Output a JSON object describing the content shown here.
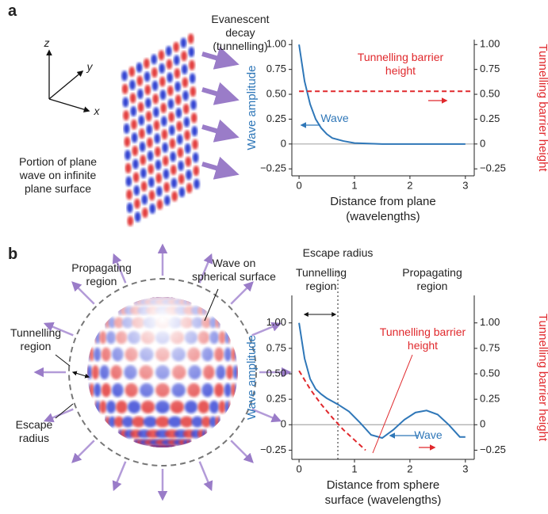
{
  "panels": [
    {
      "label": "a",
      "axes": [
        "z",
        "y",
        "x"
      ],
      "caption": "Portion of plane wave on infinite plane surface",
      "arrow_label": "Evanescent decay (tunnelling)"
    },
    {
      "label": "b",
      "propagating": "Propagating region",
      "wave": "Wave on spherical surface",
      "tunnelling": "Tunnelling region",
      "escape": "Escape radius"
    }
  ],
  "chart_data": [
    {
      "type": "line",
      "xlabel": [
        "Distance from plane",
        "(wavelengths)"
      ],
      "ylabel": "Wave amplitude",
      "y2label": "Tunnelling barrier height",
      "xlim": [
        -0.13,
        3.16
      ],
      "xticks": [
        0,
        1,
        2,
        3
      ],
      "ylim": [
        -0.32,
        1.05
      ],
      "yticks": [
        {
          "value": -0.25,
          "label": "−0.25"
        },
        0,
        {
          "value": 0.25,
          "label": "0.25"
        },
        {
          "value": 0.5,
          "label": "0.50"
        },
        {
          "value": 0.75,
          "label": "0.75"
        },
        {
          "value": 1,
          "label": "1.00"
        }
      ],
      "y2lim": [
        -0.32,
        1.05
      ],
      "y2ticks": [
        {
          "value": -0.25,
          "label": "−0.25"
        },
        0,
        {
          "value": 0.25,
          "label": "0.25"
        },
        {
          "value": 0.5,
          "label": "0.50"
        },
        {
          "value": 0.75,
          "label": "0.75"
        },
        {
          "value": 1,
          "label": "1.00"
        }
      ],
      "series": [
        {
          "name": "Wave",
          "color": "#2f77b8",
          "x": [
            0,
            0.1,
            0.2,
            0.3,
            0.4,
            0.5,
            0.6,
            0.8,
            1.0,
            1.5,
            2,
            2.5,
            3
          ],
          "values": [
            1.0,
            0.63,
            0.4,
            0.25,
            0.16,
            0.1,
            0.06,
            0.03,
            0.01,
            0,
            0,
            0,
            0
          ]
        },
        {
          "name": "Tunnelling barrier height",
          "color": "#e0282c",
          "axis": "y2",
          "dash": true,
          "x": [
            0,
            3.1
          ],
          "values": [
            0.53,
            0.53
          ]
        }
      ]
    },
    {
      "type": "line",
      "xlabel": [
        "Distance from sphere",
        "surface (wavelengths)"
      ],
      "ylabel": "Wave amplitude",
      "y2label": "Tunnelling barrier height",
      "xlim": [
        -0.13,
        3.16
      ],
      "xticks": [
        0,
        1,
        2,
        3
      ],
      "ylim": [
        -0.34,
        1.27
      ],
      "yticks": [
        {
          "value": -0.25,
          "label": "−0.25"
        },
        0,
        {
          "value": 0.25,
          "label": "0.25"
        },
        {
          "value": 0.5,
          "label": "0.50"
        },
        {
          "value": 0.75,
          "label": "0.75"
        },
        {
          "value": 1,
          "label": "1.00"
        }
      ],
      "y2lim": [
        -0.34,
        1.27
      ],
      "y2ticks": [
        {
          "value": -0.25,
          "label": "−0.25"
        },
        0,
        {
          "value": 0.25,
          "label": "0.25"
        },
        {
          "value": 0.5,
          "label": "0.50"
        },
        {
          "value": 0.75,
          "label": "0.75"
        },
        {
          "value": 1,
          "label": "1.00"
        }
      ],
      "escape_radius": {
        "label": "Escape radius",
        "x": 0.7
      },
      "regions": [
        "Tunnelling region",
        "Propagating region"
      ],
      "series": [
        {
          "name": "Wave",
          "color": "#2f77b8",
          "x": [
            0,
            0.1,
            0.2,
            0.3,
            0.4,
            0.5,
            0.7,
            0.9,
            1.1,
            1.3,
            1.5,
            1.7,
            1.9,
            2.1,
            2.3,
            2.5,
            2.7,
            2.9,
            3.0
          ],
          "values": [
            1.0,
            0.65,
            0.45,
            0.35,
            0.3,
            0.26,
            0.2,
            0.13,
            0.02,
            -0.1,
            -0.13,
            -0.05,
            0.05,
            0.12,
            0.14,
            0.1,
            0.0,
            -0.12,
            -0.12
          ]
        },
        {
          "name": "Tunnelling barrier height",
          "color": "#e0282c",
          "axis": "y2",
          "dash": true,
          "x": [
            0,
            0.2,
            0.4,
            0.6,
            0.8,
            1.0,
            1.2
          ],
          "values": [
            0.53,
            0.35,
            0.2,
            0.07,
            -0.05,
            -0.15,
            -0.25
          ]
        }
      ]
    }
  ]
}
